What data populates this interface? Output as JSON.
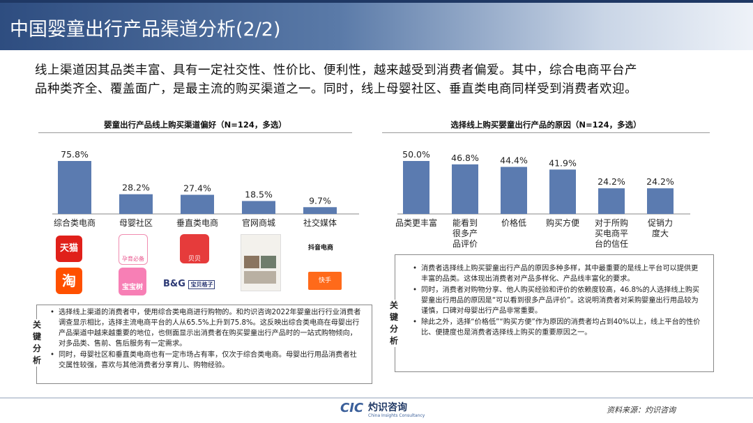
{
  "header": {
    "title": "中国婴童出行产品渠道分析(2/2)"
  },
  "intro": {
    "line1": "线上渠道因其品类丰富、具有一定社交性、性价比、便利性，越来越受到消费者偏爱。其中，综合电商平台产",
    "line2": "品种类齐全、覆盖面广，是最主流的购买渠道之一。同时，线上母婴社区、垂直类电商同样受到消费者欢迎。"
  },
  "chart_data": [
    {
      "type": "bar",
      "title": "婴童出行产品线上购买渠道偏好（N=124，多选）",
      "categories": [
        "综合类电商",
        "母婴社区",
        "垂直类电商",
        "官网商城",
        "社交媒体"
      ],
      "values": [
        75.8,
        28.2,
        27.4,
        18.5,
        9.7
      ],
      "value_labels": [
        "75.8%",
        "28.2%",
        "27.4%",
        "18.5%",
        "9.7%"
      ],
      "ylim": [
        0,
        80
      ],
      "bar_color": "#5b7bb0",
      "grid": false
    },
    {
      "type": "bar",
      "title": "选择线上购买婴童出行产品的原因（N=124，多选）",
      "categories": [
        "品类更丰富",
        "能看到很多产品评价",
        "价格低",
        "购买方便",
        "对于所购买电商平台的信任",
        "促销力度大"
      ],
      "category_lines": [
        [
          "品类更丰富"
        ],
        [
          "能看到",
          "很多产",
          "品评价"
        ],
        [
          "价格低"
        ],
        [
          "购买方便"
        ],
        [
          "对于所购",
          "买电商平",
          "台的信任"
        ],
        [
          "促销力",
          "度大"
        ]
      ],
      "values": [
        50.0,
        46.8,
        44.4,
        41.9,
        24.2,
        24.2
      ],
      "value_labels": [
        "50.0%",
        "46.8%",
        "44.4%",
        "41.9%",
        "24.2%",
        "24.2%"
      ],
      "ylim": [
        0,
        55
      ],
      "bar_color": "#5b7bb0",
      "grid": false
    }
  ],
  "logos": {
    "tmall": "天猫",
    "taobao": "淘",
    "babytree": "宝宝树",
    "jd_baby": "孕育必备",
    "beibei": "贝贝",
    "bg": "B&G",
    "bg_name": "宝贝格子",
    "douyin": "抖音电商",
    "kuaishou": "快手"
  },
  "analysis_left": {
    "label": "关键分析",
    "bullet1": "选择线上渠道的消费者中，使用综合类电商进行购物的。和灼识咨询2022年婴童出行行业消费者调查显示相比，选择主流电商平台的人从65.5%上升到75.8%。这反映出综合类电商在母婴出行产品渠道中越来越重要的地位，也侧面显示出消费者在购买婴童出行产品时的一站式购物倾向，对多品类、售前、售后服务有一定需求。",
    "bullet2": "同时，母婴社区和垂直类电商也有一定市场占有率，仅次于综合类电商。母婴出行用品消费者社交属性较强，喜欢与其他消费者分享育儿、购物经验。"
  },
  "analysis_right": {
    "label": "关键分析",
    "bullet1": "消费者选择线上购买婴童出行产品的原因多种多样，其中最重要的是线上平台可以提供更丰富的品类。这体现出消费者对产品多样化、产品线丰富化的要求。",
    "bullet2": "同时，消费者对购物分享、他人购买经验和评价的依赖度较高，46.8%的人选择线上购买婴童出行用品的原因是“可以看到很多产品评价”。这说明消费者对采购婴童出行用品较为谨慎，口碑对母婴出行产品非常重要。",
    "bullet3": "除此之外，选择“价格低”“购买方便”作为原因的消费者均占到40%以上，线上平台的性价比、便捷度也是消费者选择线上购买的重要原因之一。"
  },
  "footer": {
    "brand_mark": "CIC",
    "brand_name": "灼识咨询",
    "brand_sub": "China Insights Consultancy",
    "source": "资料来源：灼识咨询"
  }
}
